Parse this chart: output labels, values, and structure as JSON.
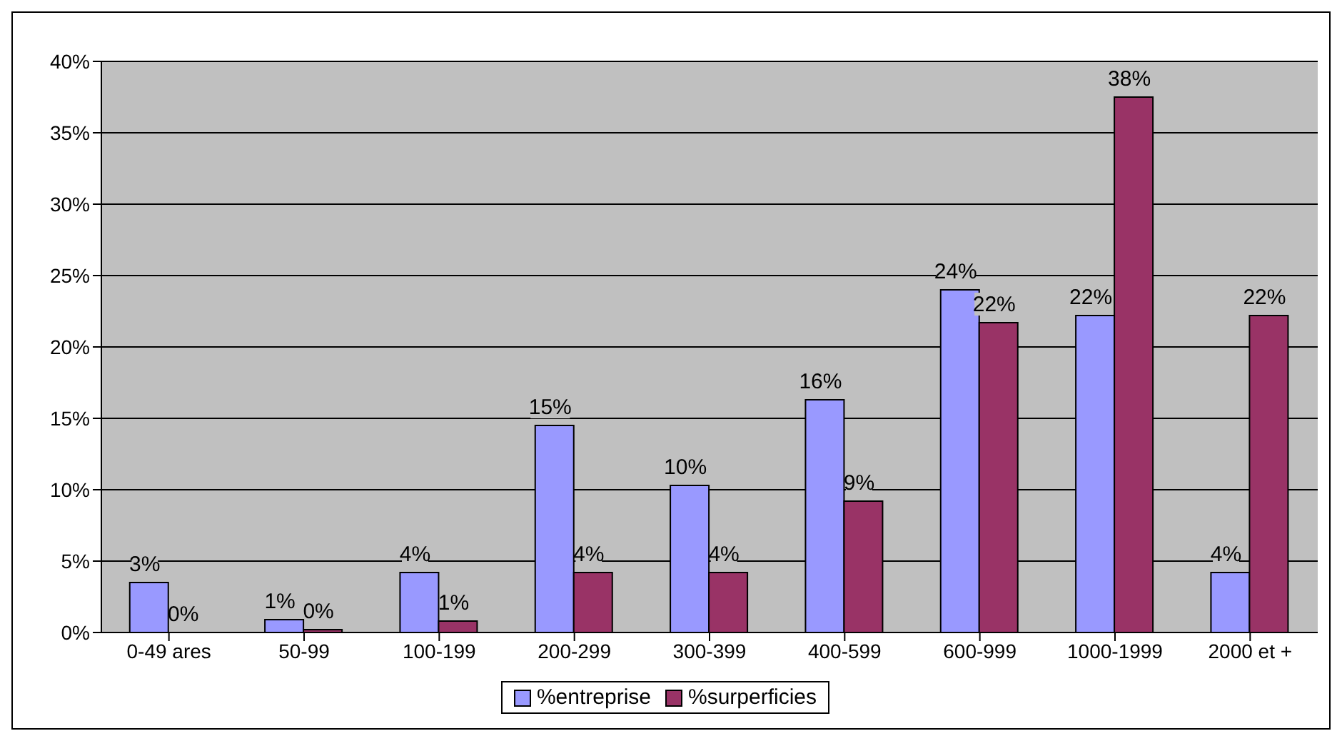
{
  "chart_data": {
    "type": "bar",
    "categories": [
      "0-49 ares",
      "50-99",
      "100-199",
      "200-299",
      "300-399",
      "400-599",
      "600-999",
      "1000-1999",
      "2000 et +"
    ],
    "series": [
      {
        "name": "%entreprise",
        "color": "#9999ff",
        "values": [
          3.5,
          0.9,
          4.2,
          14.5,
          10.3,
          16.3,
          24.0,
          22.2,
          4.2
        ],
        "value_labels": [
          "3%",
          "1%",
          "4%",
          "15%",
          "10%",
          "16%",
          "24%",
          "22%",
          "4%"
        ]
      },
      {
        "name": "%surperficies",
        "color": "#993366",
        "values": [
          0,
          0.2,
          0.8,
          4.2,
          4.2,
          9.2,
          21.7,
          37.5,
          22.2
        ],
        "value_labels": [
          "0%",
          "0%",
          "1%",
          "4%",
          "4%",
          "9%",
          "22%",
          "38%",
          "22%"
        ]
      }
    ],
    "ylim": [
      0,
      40
    ],
    "yticks": [
      {
        "value": 0,
        "label": "0%"
      },
      {
        "value": 5,
        "label": "5%"
      },
      {
        "value": 10,
        "label": "10%"
      },
      {
        "value": 15,
        "label": "15%"
      },
      {
        "value": 20,
        "label": "20%"
      },
      {
        "value": 25,
        "label": "25%"
      },
      {
        "value": 30,
        "label": "30%"
      },
      {
        "value": 35,
        "label": "35%"
      },
      {
        "value": 40,
        "label": "40%"
      }
    ],
    "grid": "y",
    "legend": "bottom"
  }
}
